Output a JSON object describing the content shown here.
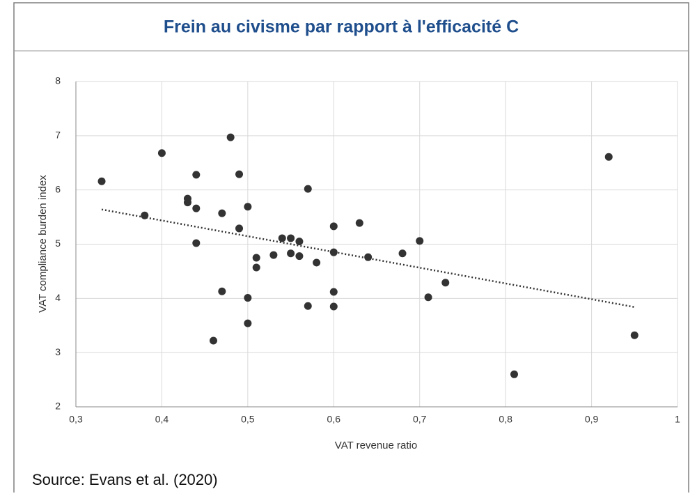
{
  "chart_data": {
    "type": "scatter",
    "title": "Frein au civisme par rapport à l'efficacité C",
    "xlabel": "VAT revenue ratio",
    "ylabel": "VAT compliance burden index",
    "source": "Source: Evans et al. (2020)",
    "x": [
      0.33,
      0.38,
      0.4,
      0.44,
      0.43,
      0.43,
      0.44,
      0.44,
      0.48,
      0.49,
      0.47,
      0.5,
      0.49,
      0.47,
      0.46,
      0.5,
      0.5,
      0.51,
      0.51,
      0.53,
      0.54,
      0.55,
      0.55,
      0.56,
      0.56,
      0.57,
      0.57,
      0.58,
      0.6,
      0.6,
      0.6,
      0.6,
      0.63,
      0.64,
      0.68,
      0.7,
      0.71,
      0.73,
      0.81,
      0.92,
      0.95
    ],
    "values": [
      6.16,
      5.53,
      6.68,
      6.28,
      5.84,
      5.77,
      5.66,
      5.02,
      6.97,
      6.29,
      5.57,
      5.69,
      5.29,
      4.13,
      3.22,
      4.01,
      3.54,
      4.75,
      4.57,
      4.8,
      5.11,
      5.11,
      4.83,
      5.05,
      4.78,
      6.02,
      3.86,
      4.66,
      5.33,
      4.85,
      4.12,
      3.85,
      5.39,
      4.76,
      4.83,
      5.06,
      4.02,
      4.29,
      2.6,
      6.61,
      3.32
    ],
    "color": "#333333",
    "trendline": {
      "x": [
        0.33,
        0.95
      ],
      "y": [
        5.64,
        3.84
      ]
    },
    "xlim": [
      0.3,
      1
    ],
    "ylim": [
      2,
      8
    ],
    "xticks": [
      {
        "value": 0.3,
        "label": "0,3"
      },
      {
        "value": 0.4,
        "label": "0,4"
      },
      {
        "value": 0.5,
        "label": "0,5"
      },
      {
        "value": 0.6,
        "label": "0,6"
      },
      {
        "value": 0.7,
        "label": "0,7"
      },
      {
        "value": 0.8,
        "label": "0,8"
      },
      {
        "value": 0.9,
        "label": "0,9"
      },
      1
    ],
    "yticks": [
      2,
      3,
      4,
      5,
      6,
      7,
      8
    ],
    "grid": true
  }
}
